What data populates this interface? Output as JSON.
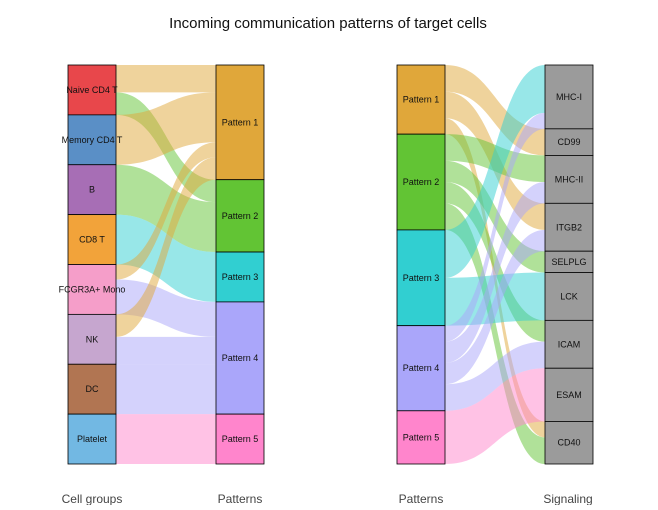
{
  "chart_data": {
    "type": "alluvial",
    "title": "Incoming communication patterns of target cells",
    "panels": [
      {
        "left_axis_label": "Cell groups",
        "right_axis_label": "Patterns",
        "left_nodes": [
          {
            "name": "Naive CD4 T",
            "color": "#e8474b"
          },
          {
            "name": "Memory CD4 T",
            "color": "#5a8fc6"
          },
          {
            "name": "B",
            "color": "#a76eb5"
          },
          {
            "name": "CD8 T",
            "color": "#f2a33a"
          },
          {
            "name": "FCGR3A+ Mono",
            "color": "#f59ec9"
          },
          {
            "name": "NK",
            "color": "#c6a6cf"
          },
          {
            "name": "DC",
            "color": "#b17552"
          },
          {
            "name": "Platelet",
            "color": "#72b8e3"
          }
        ],
        "right_nodes": [
          {
            "name": "Pattern 1",
            "color": "#e0a73a"
          },
          {
            "name": "Pattern 2",
            "color": "#62c434"
          },
          {
            "name": "Pattern 3",
            "color": "#31cfd1"
          },
          {
            "name": "Pattern 4",
            "color": "#aaa6fa"
          },
          {
            "name": "Pattern 5",
            "color": "#ff85cc"
          }
        ],
        "links": [
          {
            "from": "Naive CD4 T",
            "to": "Pattern 1",
            "value": 0.55
          },
          {
            "from": "Naive CD4 T",
            "to": "Pattern 2",
            "value": 0.45
          },
          {
            "from": "Memory CD4 T",
            "to": "Pattern 1",
            "value": 1.0
          },
          {
            "from": "B",
            "to": "Pattern 2",
            "value": 1.0
          },
          {
            "from": "CD8 T",
            "to": "Pattern 3",
            "value": 1.0
          },
          {
            "from": "FCGR3A+ Mono",
            "to": "Pattern 1",
            "value": 0.3
          },
          {
            "from": "FCGR3A+ Mono",
            "to": "Pattern 4",
            "value": 0.7
          },
          {
            "from": "NK",
            "to": "Pattern 1",
            "value": 0.45
          },
          {
            "from": "NK",
            "to": "Pattern 4",
            "value": 0.55
          },
          {
            "from": "DC",
            "to": "Pattern 4",
            "value": 1.0
          },
          {
            "from": "Platelet",
            "to": "Pattern 5",
            "value": 1.0
          }
        ]
      },
      {
        "left_axis_label": "Patterns",
        "right_axis_label": "Signaling",
        "left_nodes": [
          {
            "name": "Pattern 1",
            "color": "#e0a73a"
          },
          {
            "name": "Pattern 2",
            "color": "#62c434"
          },
          {
            "name": "Pattern 3",
            "color": "#31cfd1"
          },
          {
            "name": "Pattern 4",
            "color": "#aaa6fa"
          },
          {
            "name": "Pattern 5",
            "color": "#ff85cc"
          }
        ],
        "right_nodes": [
          {
            "name": "MHC-I",
            "color": "#9b9b9b"
          },
          {
            "name": "CD99",
            "color": "#9b9b9b"
          },
          {
            "name": "MHC-II",
            "color": "#9b9b9b"
          },
          {
            "name": "ITGB2",
            "color": "#9b9b9b"
          },
          {
            "name": "SELPLG",
            "color": "#9b9b9b"
          },
          {
            "name": "LCK",
            "color": "#9b9b9b"
          },
          {
            "name": "ICAM",
            "color": "#9b9b9b"
          },
          {
            "name": "ESAM",
            "color": "#9b9b9b"
          },
          {
            "name": "CD40",
            "color": "#9b9b9b"
          }
        ],
        "links": [
          {
            "from": "Pattern 1",
            "to": "CD99",
            "value": 0.5
          },
          {
            "from": "Pattern 1",
            "to": "ITGB2",
            "value": 0.5
          },
          {
            "from": "Pattern 1",
            "to": "CD40",
            "value": 0.3
          },
          {
            "from": "Pattern 2",
            "to": "MHC-II",
            "value": 0.5
          },
          {
            "from": "Pattern 2",
            "to": "SELPLG",
            "value": 0.4
          },
          {
            "from": "Pattern 2",
            "to": "ICAM",
            "value": 0.4
          },
          {
            "from": "Pattern 2",
            "to": "CD40",
            "value": 0.5
          },
          {
            "from": "Pattern 3",
            "to": "MHC-I",
            "value": 0.9
          },
          {
            "from": "Pattern 3",
            "to": "LCK",
            "value": 0.9
          },
          {
            "from": "Pattern 4",
            "to": "MHC-I",
            "value": 0.3
          },
          {
            "from": "Pattern 4",
            "to": "MHC-II",
            "value": 0.4
          },
          {
            "from": "Pattern 4",
            "to": "ITGB2",
            "value": 0.4
          },
          {
            "from": "Pattern 4",
            "to": "ICAM",
            "value": 0.5
          },
          {
            "from": "Pattern 5",
            "to": "ESAM",
            "value": 1.0
          }
        ]
      }
    ]
  }
}
